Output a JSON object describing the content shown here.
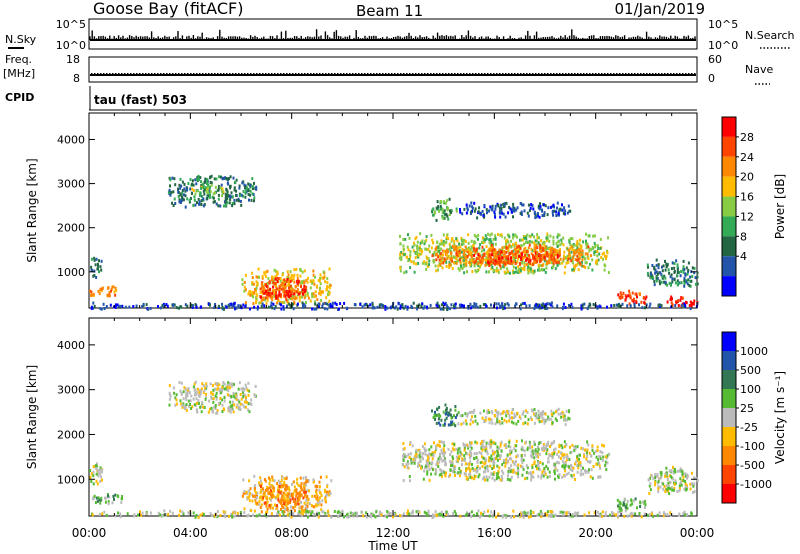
{
  "header": {
    "station": "Goose Bay (fitACF)",
    "beam": "Beam 11",
    "date": "01/Jan/2019"
  },
  "strips": {
    "nsky_label": "N.Sky",
    "nsky_ticks": [
      "10^5",
      "10^0"
    ],
    "nsearch_label": "N.Search",
    "nsearch_ticks": [
      "10^5",
      "10^0"
    ],
    "freq_label": "Freq.",
    "freq_unit": "[MHz]",
    "freq_ticks": [
      "18",
      "8"
    ],
    "nave_label": "Nave",
    "nave_ticks": [
      "60",
      "0"
    ],
    "cpid_label": "CPID",
    "cpid_value": "tau (fast) 503"
  },
  "chart_data": [
    {
      "type": "heatmap",
      "quantity": "power",
      "ylabel": "Slant Range [km]",
      "xlabel": "Time UT",
      "x_ticks": [
        "00:00",
        "04:00",
        "08:00",
        "12:00",
        "16:00",
        "20:00",
        "00:00"
      ],
      "x_range_hours": [
        0,
        24
      ],
      "y_ticks": [
        1000,
        2000,
        3000,
        4000
      ],
      "ylim": [
        180,
        4600
      ],
      "colorbar": {
        "label": "Power [dB]",
        "ticks": [
          "28",
          "24",
          "20",
          "16",
          "12",
          "8",
          "4"
        ],
        "colors": [
          "#ff0000",
          "#ff4400",
          "#ff8800",
          "#ffbb00",
          "#88cc44",
          "#33aa55",
          "#226644",
          "#2255aa",
          "#0000ff"
        ]
      },
      "blobs": [
        {
          "t0": 0.0,
          "t1": 0.5,
          "r0": 900,
          "r1": 1400,
          "level": 6
        },
        {
          "t0": 0.0,
          "t1": 1.3,
          "r0": 480,
          "r1": 700,
          "level": 2
        },
        {
          "t0": 3.1,
          "t1": 6.6,
          "r0": 2500,
          "r1": 3200,
          "level": 6
        },
        {
          "t0": 4.0,
          "t1": 5.3,
          "r0": 2750,
          "r1": 3000,
          "level": 4
        },
        {
          "t0": 6.0,
          "t1": 9.6,
          "r0": 300,
          "r1": 1100,
          "level": 3
        },
        {
          "t0": 6.7,
          "t1": 8.6,
          "r0": 380,
          "r1": 900,
          "level": 1
        },
        {
          "t0": 7.0,
          "t1": 8.0,
          "r0": 400,
          "r1": 650,
          "level": 0
        },
        {
          "t0": 12.2,
          "t1": 20.5,
          "r0": 1000,
          "r1": 1900,
          "level": 4
        },
        {
          "t0": 13.5,
          "t1": 19.8,
          "r0": 1150,
          "r1": 1650,
          "level": 2
        },
        {
          "t0": 15.0,
          "t1": 18.5,
          "r0": 1200,
          "r1": 1500,
          "level": 1
        },
        {
          "t0": 13.5,
          "t1": 14.5,
          "r0": 2200,
          "r1": 2700,
          "level": 5
        },
        {
          "t0": 14.5,
          "t1": 19.0,
          "r0": 2250,
          "r1": 2600,
          "level": 7
        },
        {
          "t0": 20.8,
          "t1": 22.0,
          "r0": 300,
          "r1": 600,
          "level": 1
        },
        {
          "t0": 22.0,
          "t1": 24.0,
          "r0": 700,
          "r1": 1300,
          "level": 6
        },
        {
          "t0": 22.8,
          "t1": 24.0,
          "r0": 250,
          "r1": 480,
          "level": 0
        },
        {
          "t0": 0.0,
          "t1": 24.0,
          "r0": 180,
          "r1": 330,
          "level": 7
        }
      ]
    },
    {
      "type": "heatmap",
      "quantity": "velocity",
      "ylabel": "Slant Range [km]",
      "xlabel": "Time UT",
      "x_ticks": [
        "00:00",
        "04:00",
        "08:00",
        "12:00",
        "16:00",
        "20:00",
        "00:00"
      ],
      "x_range_hours": [
        0,
        24
      ],
      "y_ticks": [
        1000,
        2000,
        3000,
        4000
      ],
      "ylim": [
        180,
        4600
      ],
      "colorbar": {
        "label": "Velocity [m s⁻¹]",
        "ticks": [
          "1000",
          "500",
          "100",
          "25",
          "-25",
          "-100",
          "-500",
          "-1000"
        ],
        "colors": [
          "#0000ff",
          "#2255aa",
          "#337755",
          "#55bb33",
          "#bbbbbb",
          "#ffbb00",
          "#ff8800",
          "#ff4400",
          "#ff0000"
        ]
      },
      "blobs": [
        {
          "t0": 0.0,
          "t1": 0.5,
          "r0": 900,
          "r1": 1400,
          "level": 4
        },
        {
          "t0": 0.0,
          "t1": 1.3,
          "r0": 480,
          "r1": 700,
          "level": 3
        },
        {
          "t0": 3.1,
          "t1": 6.6,
          "r0": 2500,
          "r1": 3200,
          "level": 4
        },
        {
          "t0": 6.0,
          "t1": 9.6,
          "r0": 300,
          "r1": 1100,
          "level": 5
        },
        {
          "t0": 6.7,
          "t1": 8.6,
          "r0": 400,
          "r1": 900,
          "level": 6
        },
        {
          "t0": 12.2,
          "t1": 20.5,
          "r0": 1000,
          "r1": 1900,
          "level": 4
        },
        {
          "t0": 13.5,
          "t1": 14.5,
          "r0": 2200,
          "r1": 2700,
          "level": 2
        },
        {
          "t0": 14.5,
          "t1": 19.0,
          "r0": 2250,
          "r1": 2600,
          "level": 4
        },
        {
          "t0": 20.8,
          "t1": 22.0,
          "r0": 300,
          "r1": 600,
          "level": 3
        },
        {
          "t0": 22.0,
          "t1": 24.0,
          "r0": 700,
          "r1": 1300,
          "level": 4
        },
        {
          "t0": 0.0,
          "t1": 24.0,
          "r0": 180,
          "r1": 330,
          "level": 4
        }
      ]
    }
  ]
}
